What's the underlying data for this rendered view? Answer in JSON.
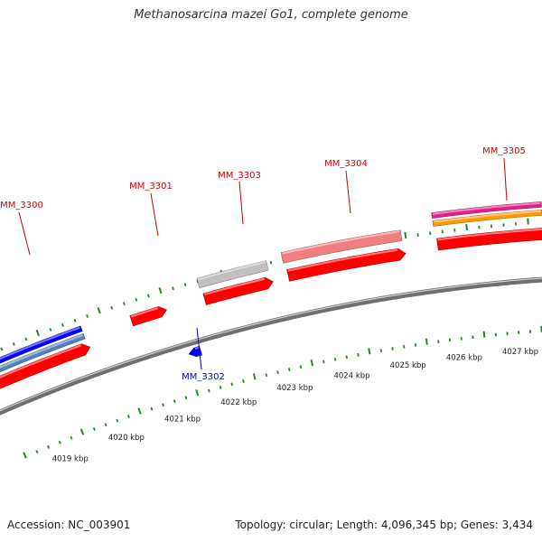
{
  "title": "Methanosarcina mazei Go1, complete genome",
  "footer": {
    "accession": "Accession: NC_003901",
    "summary": "Topology: circular; Length: 4,096,345 bp; Genes: 3,434"
  },
  "colors": {
    "backbone": "#808080",
    "tick": "#228b22",
    "forward_label": "#cc0000",
    "reverse_label": "#0000cc",
    "feature_red": "#ff0000",
    "feature_blue": "#0000ff",
    "feature_steelblue": "#4f81bd",
    "feature_gray": "#c0c0c0",
    "feature_pink": "#f08080",
    "feature_magenta": "#e61e8c",
    "feature_orange": "#ff9900"
  },
  "ticks": {
    "labels": [
      "4019 kbp",
      "4020 kbp",
      "4021 kbp",
      "4022 kbp",
      "4023 kbp",
      "4024 kbp",
      "4025 kbp",
      "4026 kbp",
      "4027 kbp"
    ]
  },
  "genes": [
    {
      "label": "MM_3300",
      "strand": "forward"
    },
    {
      "label": "MM_3301",
      "strand": "forward"
    },
    {
      "label": "MM_3302",
      "strand": "reverse"
    },
    {
      "label": "MM_3303",
      "strand": "forward"
    },
    {
      "label": "MM_3304",
      "strand": "forward"
    },
    {
      "label": "MM_3305",
      "strand": "forward"
    }
  ]
}
